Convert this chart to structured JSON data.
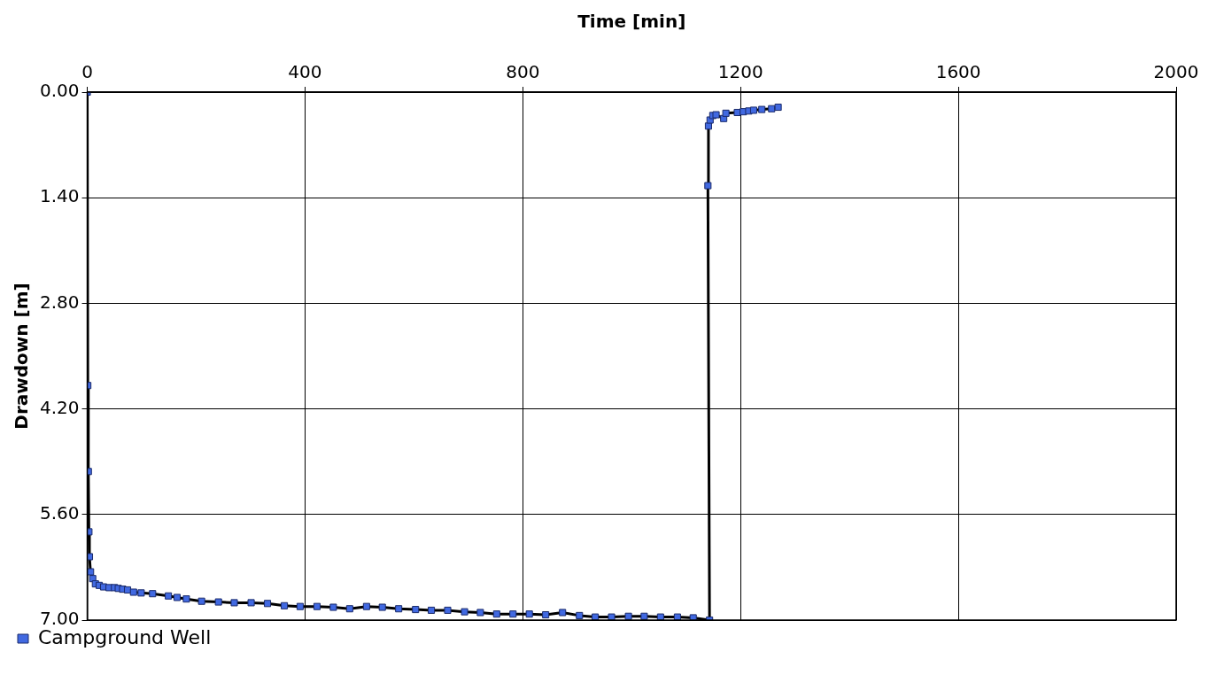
{
  "chart_data": {
    "type": "scatter",
    "xlabel": "Time [min]",
    "ylabel": "Drawdown [m]",
    "x": [
      0,
      1,
      2,
      3,
      4,
      6,
      10,
      15,
      22,
      30,
      40,
      50,
      57,
      65,
      74,
      85,
      99,
      120,
      149,
      165,
      182,
      210,
      241,
      270,
      301,
      331,
      362,
      391,
      422,
      452,
      482,
      513,
      542,
      572,
      603,
      632,
      662,
      693,
      722,
      752,
      782,
      812,
      842,
      873,
      904,
      933,
      963,
      994,
      1023,
      1053,
      1084,
      1113,
      1143,
      1140,
      1141,
      1144,
      1149,
      1155,
      1169,
      1173,
      1194,
      1205,
      1215,
      1224,
      1239,
      1257,
      1269
    ],
    "series": [
      {
        "type": "line",
        "color": "#000000",
        "marker": "none",
        "line_style": "solid",
        "values": [
          0,
          3.89,
          5.03,
          5.83,
          6.16,
          6.36,
          6.45,
          6.52,
          6.54,
          6.56,
          6.57,
          6.57,
          6.58,
          6.59,
          6.6,
          6.63,
          6.64,
          6.65,
          6.68,
          6.7,
          6.72,
          6.75,
          6.76,
          6.77,
          6.77,
          6.78,
          6.81,
          6.82,
          6.82,
          6.83,
          6.85,
          6.82,
          6.83,
          6.85,
          6.86,
          6.87,
          6.87,
          6.89,
          6.9,
          6.92,
          6.92,
          6.92,
          6.93,
          6.9,
          6.94,
          6.96,
          6.96,
          6.95,
          6.95,
          6.96,
          6.96,
          6.97,
          7.0,
          1.24,
          0.45,
          0.37,
          0.31,
          0.3,
          0.35,
          0.28,
          0.27,
          0.26,
          0.25,
          0.24,
          0.23,
          0.22,
          0.2
        ]
      },
      {
        "name": "Campground Well",
        "color": "#4169e1",
        "marker": "square",
        "values": [
          0,
          3.89,
          5.03,
          5.83,
          6.16,
          6.36,
          6.45,
          6.52,
          6.54,
          6.56,
          6.57,
          6.57,
          6.58,
          6.59,
          6.6,
          6.63,
          6.64,
          6.65,
          6.68,
          6.7,
          6.72,
          6.75,
          6.76,
          6.77,
          6.77,
          6.78,
          6.81,
          6.82,
          6.82,
          6.83,
          6.85,
          6.82,
          6.83,
          6.85,
          6.86,
          6.87,
          6.87,
          6.89,
          6.9,
          6.92,
          6.92,
          6.92,
          6.93,
          6.9,
          6.94,
          6.96,
          6.96,
          6.95,
          6.95,
          6.96,
          6.96,
          6.97,
          7.0,
          1.24,
          0.45,
          0.37,
          0.31,
          0.3,
          0.35,
          0.28,
          0.27,
          0.26,
          0.25,
          0.24,
          0.23,
          0.22,
          0.2
        ]
      }
    ],
    "xlim": [
      0,
      2000
    ],
    "xticks": [
      0,
      400,
      800,
      1200,
      1600,
      2000
    ],
    "ylim": [
      7,
      0
    ],
    "yticks": [
      {
        "value": 0,
        "label": "0.00"
      },
      {
        "value": 1.4,
        "label": "1.40"
      },
      {
        "value": 2.8,
        "label": "2.80"
      },
      {
        "value": 4.2,
        "label": "4.20"
      },
      {
        "value": 5.6,
        "label": "5.60"
      },
      {
        "value": 7,
        "label": "7.00"
      }
    ],
    "grid": true,
    "legend": "bottom left"
  }
}
